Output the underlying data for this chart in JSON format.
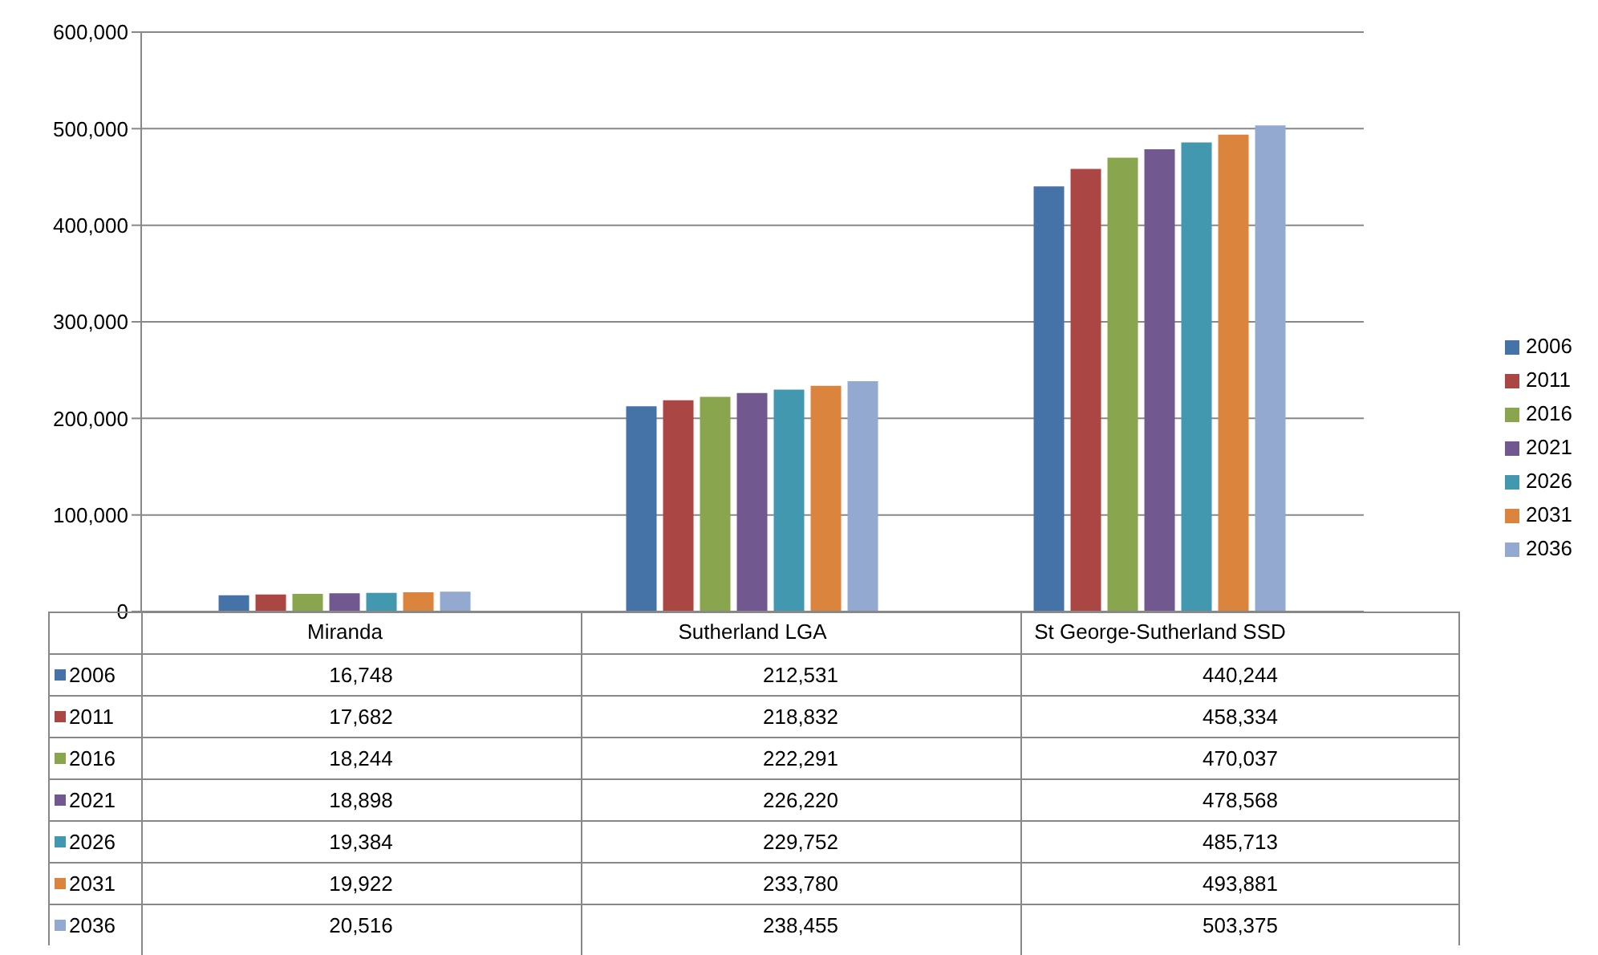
{
  "chart_data": {
    "type": "bar",
    "categories": [
      "Miranda",
      "Sutherland LGA",
      "St George-Sutherland SSD"
    ],
    "series": [
      {
        "name": "2006",
        "color": "#4572a7",
        "values": [
          16748,
          212531,
          440244
        ],
        "value_labels": [
          "16,748",
          "212,531",
          "440,244"
        ]
      },
      {
        "name": "2011",
        "color": "#aa4643",
        "values": [
          17682,
          218832,
          458334
        ],
        "value_labels": [
          "17,682",
          "218,832",
          "458,334"
        ]
      },
      {
        "name": "2016",
        "color": "#89a54e",
        "values": [
          18244,
          222291,
          470037
        ],
        "value_labels": [
          "18,244",
          "222,291",
          "470,037"
        ]
      },
      {
        "name": "2021",
        "color": "#71588f",
        "values": [
          18898,
          226220,
          478568
        ],
        "value_labels": [
          "18,898",
          "226,220",
          "478,568"
        ]
      },
      {
        "name": "2026",
        "color": "#4198af",
        "values": [
          19384,
          229752,
          485713
        ],
        "value_labels": [
          "19,384",
          "229,752",
          "485,713"
        ]
      },
      {
        "name": "2031",
        "color": "#db843d",
        "values": [
          19922,
          233780,
          493881
        ],
        "value_labels": [
          "19,922",
          "233,780",
          "493,881"
        ]
      },
      {
        "name": "2036",
        "color": "#93a9cf",
        "values": [
          20516,
          238455,
          503375
        ],
        "value_labels": [
          "20,516",
          "238,455",
          "503,375"
        ]
      }
    ],
    "ylim": [
      0,
      600000
    ],
    "yticks": [
      0,
      {
        "value": 100000,
        "label": "100,000"
      },
      {
        "value": 200000,
        "label": "200,000"
      },
      {
        "value": 300000,
        "label": "300,000"
      },
      {
        "value": 400000,
        "label": "400,000"
      },
      {
        "value": 500000,
        "label": "500,000"
      },
      {
        "value": 600000,
        "label": "600,000"
      }
    ],
    "grid": "y",
    "legend": "right"
  }
}
